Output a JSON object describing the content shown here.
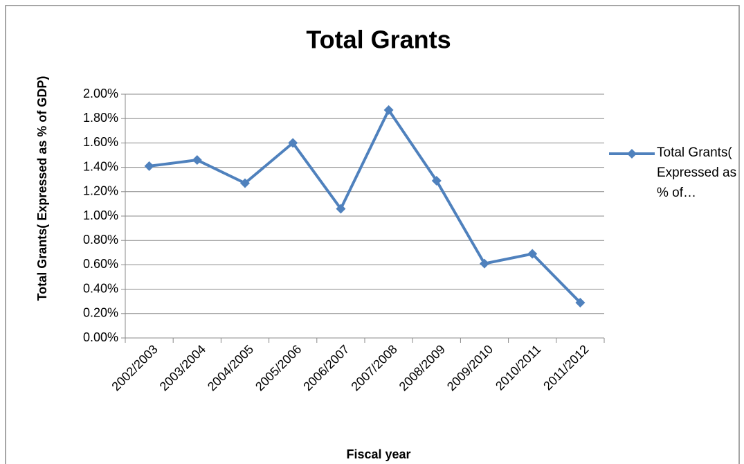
{
  "chart_data": {
    "type": "line",
    "title": "Total Grants",
    "x_label": "Fiscal year",
    "y_label": "Total Grants( Expressed as % of GDP)",
    "categories": [
      "2002/2003",
      "2003/2004",
      "2004/2005",
      "2005/2006",
      "2006/2007",
      "2007/2008",
      "2008/2009",
      "2009/2010",
      "2010/2011",
      "2011/2012"
    ],
    "series": [
      {
        "name": "Total Grants( Expressed as % of…",
        "color": "#4f81bd",
        "values": [
          1.41,
          1.46,
          1.27,
          1.6,
          1.06,
          1.87,
          1.29,
          0.61,
          0.69,
          0.29
        ]
      }
    ],
    "ylim": [
      0,
      2
    ],
    "yticks": [
      {
        "value": 0,
        "label": "0.00%"
      },
      {
        "value": 0.2,
        "label": "0.20%"
      },
      {
        "value": 0.4,
        "label": "0.40%"
      },
      {
        "value": 0.6,
        "label": "0.60%"
      },
      {
        "value": 0.8,
        "label": "0.80%"
      },
      {
        "value": 1.0,
        "label": "1.00%"
      },
      {
        "value": 1.2,
        "label": "1.20%"
      },
      {
        "value": 1.4,
        "label": "1.40%"
      },
      {
        "value": 1.6,
        "label": "1.60%"
      },
      {
        "value": 1.8,
        "label": "1.80%"
      },
      {
        "value": 2.0,
        "label": "2.00%"
      }
    ],
    "grid": true,
    "legend": "right"
  }
}
